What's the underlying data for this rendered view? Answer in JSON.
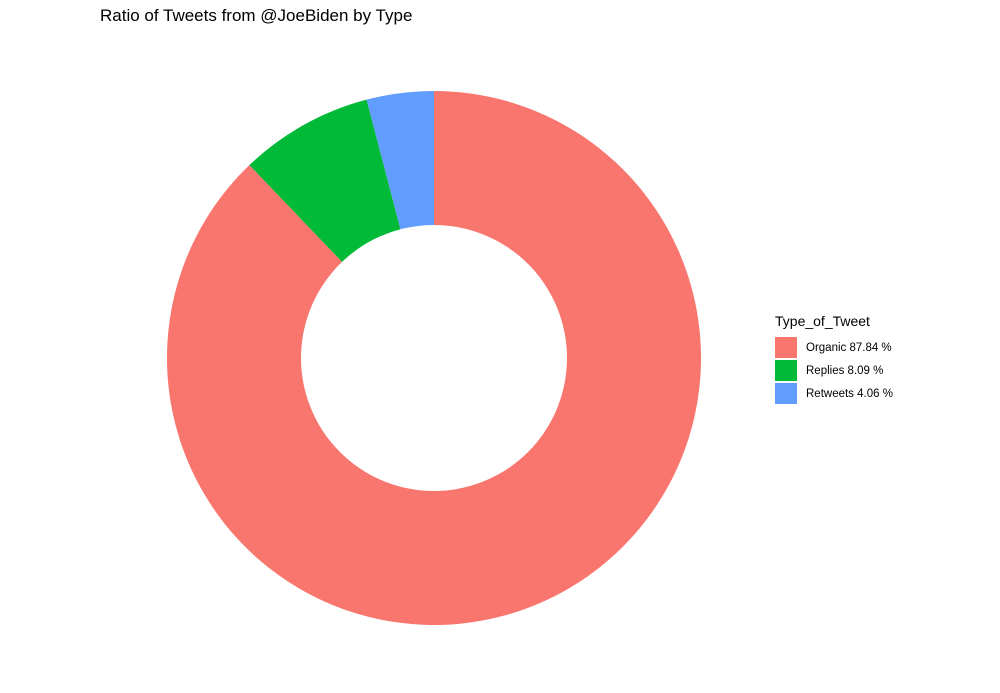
{
  "chart_data": {
    "type": "pie",
    "title": "Ratio of Tweets from @JoeBiden by Type",
    "legend_title": "Type_of_Tweet",
    "legend_position": "right",
    "donut": true,
    "slices": [
      {
        "category": "Organic",
        "label": "Organic 87.84 %",
        "value": 87.84,
        "color": "#F8766D"
      },
      {
        "category": "Replies",
        "label": "Replies 8.09 %",
        "value": 8.09,
        "color": "#00BA38"
      },
      {
        "category": "Retweets",
        "label": "Retweets 4.06 %",
        "value": 4.06,
        "color": "#619CFF"
      }
    ]
  }
}
